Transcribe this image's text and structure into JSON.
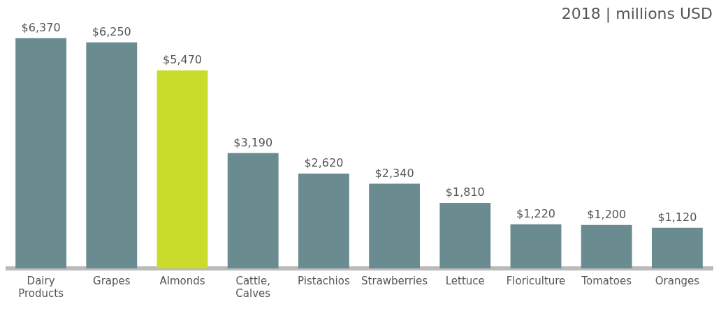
{
  "chart_data": {
    "type": "bar",
    "title": "2018 | millions USD",
    "categories": [
      "Dairy Products",
      "Grapes",
      "Almonds",
      "Cattle, Calves",
      "Pistachios",
      "Strawberries",
      "Lettuce",
      "Floriculture",
      "Tomatoes",
      "Oranges"
    ],
    "values": [
      6370,
      6250,
      5470,
      3190,
      2620,
      2340,
      1810,
      1220,
      1200,
      1120
    ],
    "colors": [
      "#6a8c91",
      "#6a8c91",
      "#c9dc2c",
      "#6a8c91",
      "#6a8c91",
      "#6a8c91",
      "#6a8c91",
      "#6a8c91",
      "#6a8c91",
      "#6a8c91"
    ],
    "value_labels": [
      "$6,370",
      "$6,250",
      "$5,470",
      "$3,190",
      "$2,620",
      "$2,340",
      "$1,810",
      "$1,220",
      "$1,200",
      "$1,120"
    ],
    "grid": false,
    "legend": false
  }
}
